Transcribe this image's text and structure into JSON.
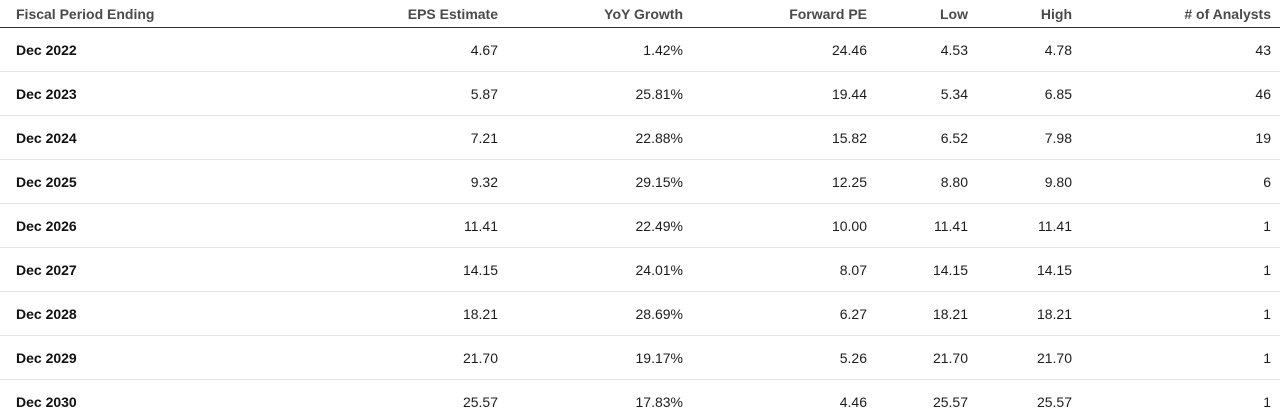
{
  "table": {
    "columns": [
      {
        "label": "Fiscal Period Ending"
      },
      {
        "label": "EPS Estimate"
      },
      {
        "label": "YoY Growth"
      },
      {
        "label": "Forward PE"
      },
      {
        "label": "Low"
      },
      {
        "label": "High"
      },
      {
        "label": "# of Analysts"
      }
    ],
    "rows": [
      {
        "period": "Dec 2022",
        "eps_estimate": "4.67",
        "yoy_growth": "1.42%",
        "forward_pe": "24.46",
        "low": "4.53",
        "high": "4.78",
        "analysts": "43"
      },
      {
        "period": "Dec 2023",
        "eps_estimate": "5.87",
        "yoy_growth": "25.81%",
        "forward_pe": "19.44",
        "low": "5.34",
        "high": "6.85",
        "analysts": "46"
      },
      {
        "period": "Dec 2024",
        "eps_estimate": "7.21",
        "yoy_growth": "22.88%",
        "forward_pe": "15.82",
        "low": "6.52",
        "high": "7.98",
        "analysts": "19"
      },
      {
        "period": "Dec 2025",
        "eps_estimate": "9.32",
        "yoy_growth": "29.15%",
        "forward_pe": "12.25",
        "low": "8.80",
        "high": "9.80",
        "analysts": "6"
      },
      {
        "period": "Dec 2026",
        "eps_estimate": "11.41",
        "yoy_growth": "22.49%",
        "forward_pe": "10.00",
        "low": "11.41",
        "high": "11.41",
        "analysts": "1"
      },
      {
        "period": "Dec 2027",
        "eps_estimate": "14.15",
        "yoy_growth": "24.01%",
        "forward_pe": "8.07",
        "low": "14.15",
        "high": "14.15",
        "analysts": "1"
      },
      {
        "period": "Dec 2028",
        "eps_estimate": "18.21",
        "yoy_growth": "28.69%",
        "forward_pe": "6.27",
        "low": "18.21",
        "high": "18.21",
        "analysts": "1"
      },
      {
        "period": "Dec 2029",
        "eps_estimate": "21.70",
        "yoy_growth": "19.17%",
        "forward_pe": "5.26",
        "low": "21.70",
        "high": "21.70",
        "analysts": "1"
      },
      {
        "period": "Dec 2030",
        "eps_estimate": "25.57",
        "yoy_growth": "17.83%",
        "forward_pe": "4.46",
        "low": "25.57",
        "high": "25.57",
        "analysts": "1"
      }
    ]
  },
  "colors": {
    "header_text": "#4a4a4a",
    "header_border": "#333333",
    "row_separator": "#e4e4e4",
    "body_text": "#1c1c1c",
    "background": "#ffffff"
  }
}
